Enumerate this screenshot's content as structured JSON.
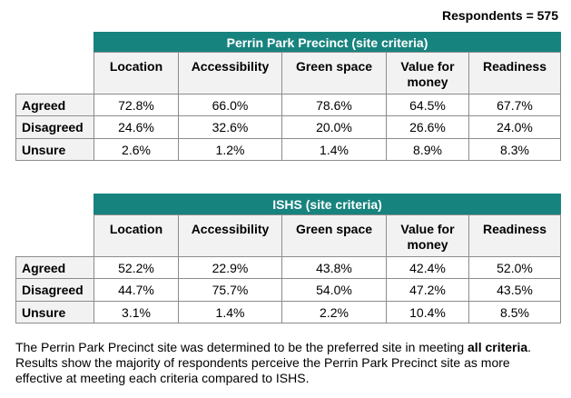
{
  "respondents": "Respondents = 575",
  "tables": [
    {
      "title": "Perrin Park Precinct (site criteria)",
      "columns": [
        "Location",
        "Accessibility",
        "Green space",
        "Value for money",
        "Readiness"
      ],
      "rows": [
        {
          "label": "Agreed",
          "cells": [
            "72.8%",
            "66.0%",
            "78.6%",
            "64.5%",
            "67.7%"
          ]
        },
        {
          "label": "Disagreed",
          "cells": [
            "24.6%",
            "32.6%",
            "20.0%",
            "26.6%",
            "24.0%"
          ]
        },
        {
          "label": "Unsure",
          "cells": [
            "2.6%",
            "1.2%",
            "1.4%",
            "8.9%",
            "8.3%"
          ]
        }
      ]
    },
    {
      "title": "ISHS (site criteria)",
      "columns": [
        "Location",
        "Accessibility",
        "Green space",
        "Value for money",
        "Readiness"
      ],
      "rows": [
        {
          "label": "Agreed",
          "cells": [
            "52.2%",
            "22.9%",
            "43.8%",
            "42.4%",
            "52.0%"
          ]
        },
        {
          "label": "Disagreed",
          "cells": [
            "44.7%",
            "75.7%",
            "54.0%",
            "47.2%",
            "43.5%"
          ]
        },
        {
          "label": "Unsure",
          "cells": [
            "3.1%",
            "1.4%",
            "2.2%",
            "10.4%",
            "8.5%"
          ]
        }
      ]
    }
  ],
  "note": {
    "parts": [
      "The Perrin Park Precinct site was determined to be the preferred site in meeting ",
      "all criteria",
      ". Results show the majority of respondents perceive the Perrin Park Precinct site as more effective at meeting each criteria compared to ISHS."
    ]
  }
}
